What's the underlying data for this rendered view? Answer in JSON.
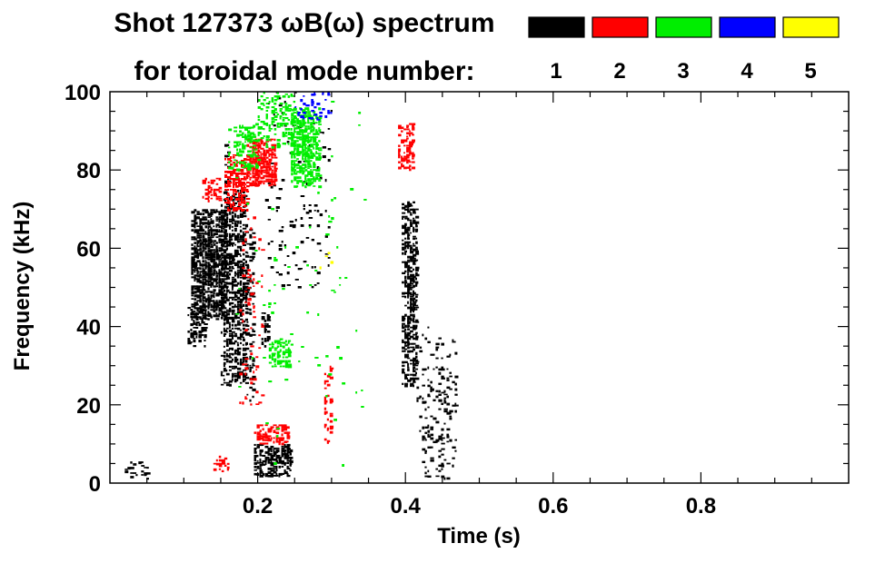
{
  "chart_data": {
    "type": "heatmap",
    "title_line1": "Shot 127373 ωB(ω) spectrum",
    "title_line2": "for toroidal mode number:",
    "xlabel": "Time (s)",
    "ylabel": "Frequency (kHz)",
    "xlim": [
      0.0,
      1.0
    ],
    "ylim": [
      0,
      100
    ],
    "x_ticks": [
      {
        "value": 0.2,
        "label": "0.2"
      },
      {
        "value": 0.4,
        "label": "0.4"
      },
      {
        "value": 0.6,
        "label": "0.6"
      },
      {
        "value": 0.8,
        "label": "0.8"
      }
    ],
    "y_ticks": [
      {
        "value": 0,
        "label": "0"
      },
      {
        "value": 20,
        "label": "20"
      },
      {
        "value": 40,
        "label": "40"
      },
      {
        "value": 60,
        "label": "60"
      },
      {
        "value": 80,
        "label": "80"
      },
      {
        "value": 100,
        "label": "100"
      }
    ],
    "legend": [
      {
        "mode": "1",
        "color": "#000000"
      },
      {
        "mode": "2",
        "color": "#ff0000"
      },
      {
        "mode": "3",
        "color": "#00ee00"
      },
      {
        "mode": "4",
        "color": "#0000ff"
      },
      {
        "mode": "5",
        "color": "#ffff00"
      }
    ],
    "regions": [
      {
        "mode": "1",
        "t": [
          0.11,
          0.155
        ],
        "f": [
          42,
          70
        ],
        "density": 0.85
      },
      {
        "mode": "1",
        "t": [
          0.105,
          0.13
        ],
        "f": [
          35,
          45
        ],
        "density": 0.45
      },
      {
        "mode": "1",
        "t": [
          0.15,
          0.185
        ],
        "f": [
          25,
          75
        ],
        "density": 0.55
      },
      {
        "mode": "1",
        "t": [
          0.155,
          0.16
        ],
        "f": [
          60,
          88
        ],
        "density": 0.35
      },
      {
        "mode": "1",
        "t": [
          0.185,
          0.195
        ],
        "f": [
          20,
          65
        ],
        "density": 0.35
      },
      {
        "mode": "1",
        "t": [
          0.205,
          0.215
        ],
        "f": [
          35,
          45
        ],
        "density": 0.6
      },
      {
        "mode": "1",
        "t": [
          0.195,
          0.245
        ],
        "f": [
          2,
          10
        ],
        "density": 0.75
      },
      {
        "mode": "1",
        "t": [
          0.395,
          0.415
        ],
        "f": [
          25,
          72
        ],
        "density": 0.6
      },
      {
        "mode": "1",
        "t": [
          0.415,
          0.47
        ],
        "f": [
          1,
          40
        ],
        "density": 0.15
      },
      {
        "mode": "1",
        "t": [
          0.02,
          0.05
        ],
        "f": [
          1,
          6
        ],
        "density": 0.25
      },
      {
        "mode": "1",
        "t": [
          0.21,
          0.3
        ],
        "f": [
          50,
          100
        ],
        "density": 0.04
      },
      {
        "mode": "2",
        "t": [
          0.125,
          0.15
        ],
        "f": [
          72,
          78
        ],
        "density": 0.45
      },
      {
        "mode": "2",
        "t": [
          0.155,
          0.185
        ],
        "f": [
          70,
          84
        ],
        "density": 0.6
      },
      {
        "mode": "2",
        "t": [
          0.185,
          0.225
        ],
        "f": [
          76,
          88
        ],
        "density": 0.85
      },
      {
        "mode": "2",
        "t": [
          0.195,
          0.24
        ],
        "f": [
          10,
          15
        ],
        "density": 0.55
      },
      {
        "mode": "2",
        "t": [
          0.39,
          0.41
        ],
        "f": [
          80,
          92
        ],
        "density": 0.5
      },
      {
        "mode": "2",
        "t": [
          0.14,
          0.16
        ],
        "f": [
          3,
          7
        ],
        "density": 0.3
      },
      {
        "mode": "2",
        "t": [
          0.29,
          0.3
        ],
        "f": [
          10,
          30
        ],
        "density": 0.3
      },
      {
        "mode": "2",
        "t": [
          0.175,
          0.205
        ],
        "f": [
          20,
          70
        ],
        "density": 0.08
      },
      {
        "mode": "3",
        "t": [
          0.16,
          0.2
        ],
        "f": [
          80,
          92
        ],
        "density": 0.45
      },
      {
        "mode": "3",
        "t": [
          0.2,
          0.25
        ],
        "f": [
          86,
          100
        ],
        "density": 0.35
      },
      {
        "mode": "3",
        "t": [
          0.245,
          0.285
        ],
        "f": [
          76,
          96
        ],
        "density": 0.7
      },
      {
        "mode": "3",
        "t": [
          0.215,
          0.245
        ],
        "f": [
          30,
          37
        ],
        "density": 0.55
      },
      {
        "mode": "3",
        "t": [
          0.17,
          0.35
        ],
        "f": [
          0,
          100
        ],
        "density": 0.01
      },
      {
        "mode": "4",
        "t": [
          0.25,
          0.3
        ],
        "f": [
          93,
          100
        ],
        "density": 0.18
      },
      {
        "mode": "5",
        "t": [
          0.28,
          0.3
        ],
        "f": [
          55,
          60
        ],
        "density": 0.05
      }
    ]
  }
}
